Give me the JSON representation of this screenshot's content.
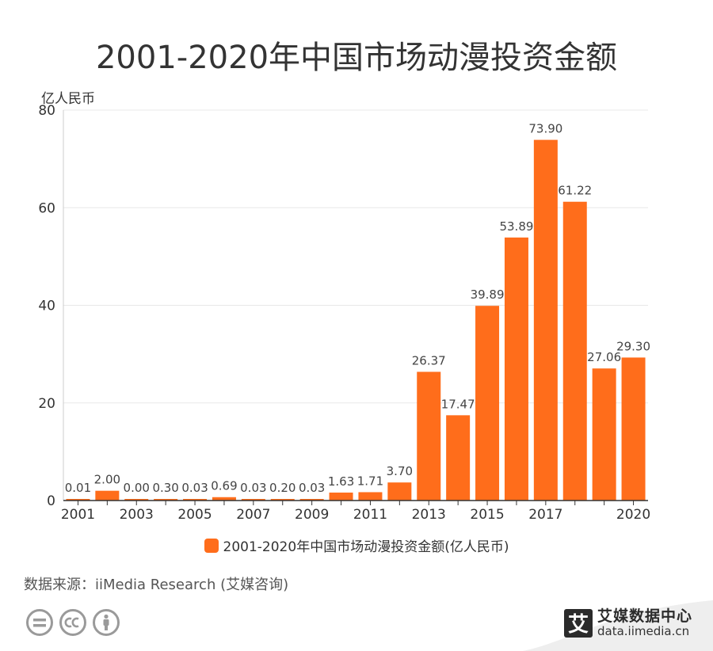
{
  "title": "2001-2020年中国市场动漫投资金额",
  "unit_label": "亿人民币",
  "legend_label": "2001-2020年中国市场动漫投资金额(亿人民币)",
  "source": "数据来源：iiMedia Research (艾媒咨询)",
  "brand": {
    "logo_char": "艾",
    "name": "艾媒数据中心",
    "url": "data.iimedia.cn"
  },
  "colors": {
    "bar": "#ff6d1b",
    "grid": "#e8e8e8",
    "axis": "#333333"
  },
  "icons": [
    "cc-equal-icon",
    "cc-icon",
    "cc-by-person-icon"
  ],
  "chart_data": {
    "type": "bar",
    "categories": [
      "2001",
      "2002",
      "2003",
      "2004",
      "2005",
      "2006",
      "2007",
      "2008",
      "2009",
      "2010",
      "2011",
      "2012",
      "2013",
      "2014",
      "2015",
      "2016",
      "2017",
      "2018",
      "2019",
      "2020"
    ],
    "series": [
      {
        "name": "2001-2020年中国市场动漫投资金额(亿人民币)",
        "values": [
          0.01,
          2.0,
          0.0,
          0.3,
          0.03,
          0.69,
          0.03,
          0.2,
          0.03,
          1.63,
          1.71,
          3.7,
          26.37,
          17.47,
          39.89,
          53.89,
          73.9,
          61.22,
          27.06,
          29.3
        ],
        "labels": [
          "0.01",
          "2.00",
          "0.00",
          "0.30",
          "0.03",
          "0.69",
          "0.03",
          "0.20",
          "0.03",
          "1.63",
          "1.71",
          "3.70",
          "26.37",
          "17.47",
          "39.89",
          "53.89",
          "73.90",
          "61.22",
          "27.06",
          "29.30"
        ]
      }
    ],
    "x_tick_labels": [
      "2001",
      "2003",
      "2005",
      "2007",
      "2009",
      "2011",
      "2013",
      "2015",
      "2017",
      "2020"
    ],
    "y_ticks": [
      "0",
      "20",
      "40",
      "60",
      "80"
    ],
    "ylim": [
      0,
      80
    ],
    "ylabel": "亿人民币",
    "grid": true,
    "legend_position": "bottom"
  }
}
